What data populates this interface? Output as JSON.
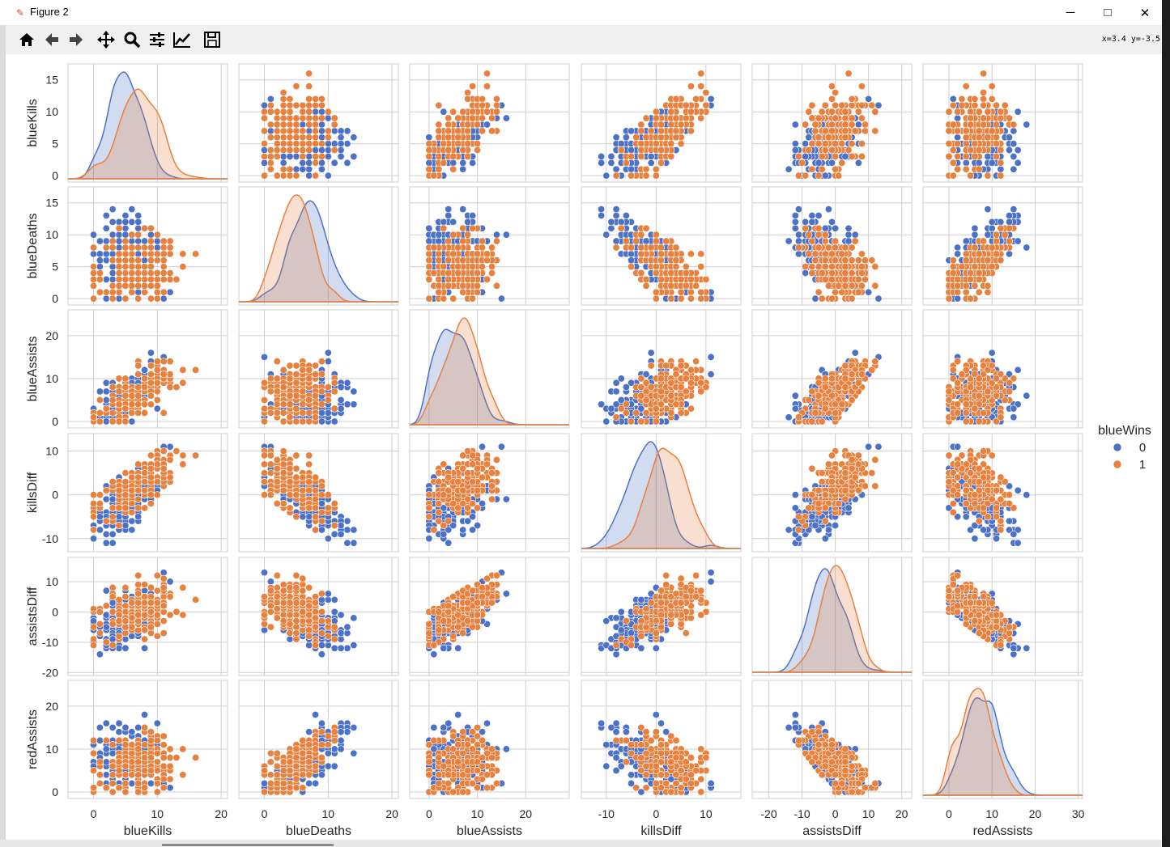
{
  "window": {
    "title": "Figure 2",
    "coords_readout": "x=3.4 y=-3.5"
  },
  "toolbar": {
    "tools": [
      "home-icon",
      "back-arrow-icon",
      "forward-arrow-icon",
      "pan-move-icon",
      "zoom-magnifier-icon",
      "configure-subplots-icon",
      "edit-axis-icon",
      "save-icon"
    ]
  },
  "window_buttons": {
    "minimize": "─",
    "maximize": "□",
    "close": "✕"
  },
  "chart_data": {
    "type": "scatter",
    "kind": "pairplot",
    "variables": [
      "blueKills",
      "blueDeaths",
      "blueAssists",
      "killsDiff",
      "assistsDiff",
      "redAssists"
    ],
    "diagonal": "kde",
    "hue": "blueWins",
    "legend": {
      "title": "blueWins",
      "entries": [
        "0",
        "1"
      ],
      "placement": "right"
    },
    "colors": {
      "0": "#4c72c8",
      "1": "#e8803e",
      "grid": "#cfcfcf"
    },
    "grid": true,
    "axes": {
      "blueKills": {
        "xlim": [
          -4,
          21
        ],
        "xticks": [
          0,
          10,
          20
        ],
        "ylim": [
          -1,
          17.5
        ],
        "yticks": [
          0,
          5,
          10,
          15
        ]
      },
      "blueDeaths": {
        "xlim": [
          -4,
          21
        ],
        "xticks": [
          0,
          10,
          20
        ],
        "ylim": [
          -1,
          17.5
        ],
        "yticks": [
          0,
          5,
          10,
          15
        ]
      },
      "blueAssists": {
        "xlim": [
          -4,
          29
        ],
        "xticks": [
          0,
          10,
          20
        ],
        "ylim": [
          -1.5,
          26
        ],
        "yticks": [
          0,
          10,
          20
        ]
      },
      "killsDiff": {
        "xlim": [
          -15,
          17
        ],
        "xticks": [
          -10,
          0,
          10
        ],
        "ylim": [
          -13,
          14
        ],
        "yticks": [
          -10,
          0,
          10
        ]
      },
      "assistsDiff": {
        "xlim": [
          -25,
          23
        ],
        "xticks": [
          -20,
          -10,
          0,
          10,
          20
        ],
        "ylim": [
          -21,
          18
        ],
        "yticks": [
          -20,
          -10,
          0,
          10
        ]
      },
      "redAssists": {
        "xlim": [
          -6,
          31
        ],
        "xticks": [
          0,
          10,
          20,
          30
        ],
        "ylim": [
          -1.5,
          26
        ],
        "yticks": [
          0,
          10,
          20
        ]
      }
    }
  }
}
